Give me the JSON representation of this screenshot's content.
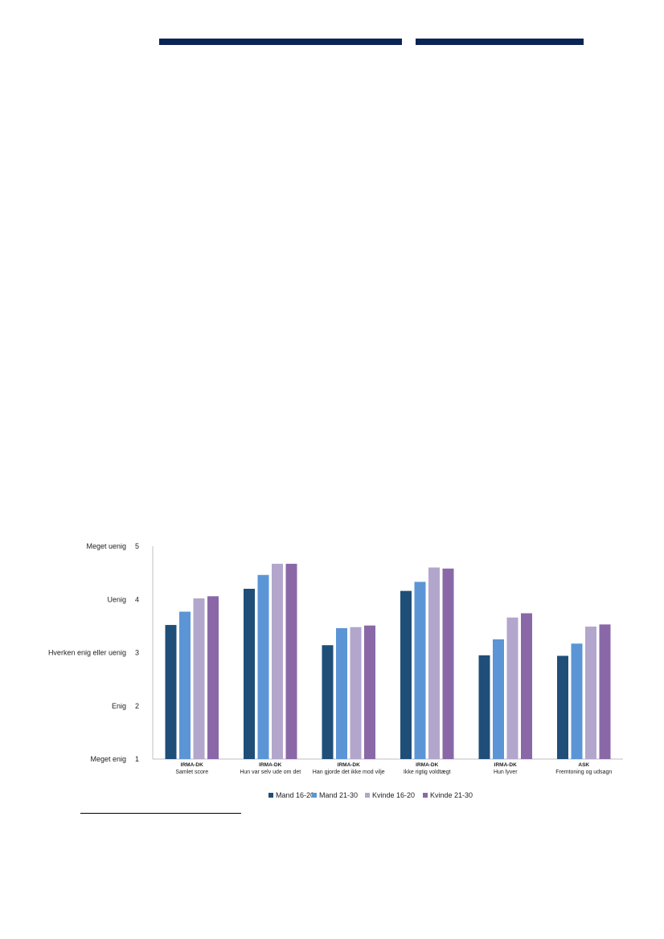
{
  "header": {
    "colors": [
      "#0a2456",
      "#0a2456"
    ]
  },
  "chart_data": {
    "type": "bar",
    "categories": [
      {
        "line1": "IRMA-DK",
        "line2": "Samlet score"
      },
      {
        "line1": "IRMA-DK",
        "line2": "Hun var selv ude om det"
      },
      {
        "line1": "IRMA-DK",
        "line2": "Han gjorde det ikke mod vilje"
      },
      {
        "line1": "IRMA-DK",
        "line2": "Ikke rigtig voldtægt"
      },
      {
        "line1": "IRMA-DK",
        "line2": "Hun lyver"
      },
      {
        "line1": "ASK",
        "line2": "Fremtoning og udsagn"
      }
    ],
    "series": [
      {
        "name": "Mand 16-20",
        "color": "#1f4e79",
        "values": [
          3.52,
          4.2,
          3.14,
          4.16,
          2.95,
          2.94
        ]
      },
      {
        "name": "Mand 21-30",
        "color": "#5b95d6",
        "values": [
          3.77,
          4.46,
          3.46,
          4.33,
          3.25,
          3.17
        ]
      },
      {
        "name": "Kvinde 16-20",
        "color": "#b3a6cc",
        "values": [
          4.02,
          4.67,
          3.48,
          4.6,
          3.66,
          3.49
        ]
      },
      {
        "name": "Kvinde 21-30",
        "color": "#8a68a8",
        "values": [
          4.06,
          4.67,
          3.51,
          4.58,
          3.74,
          3.53
        ]
      }
    ],
    "ylim": [
      1,
      5
    ],
    "yticks": [
      {
        "value": 5,
        "num": "5",
        "label": "Meget uenig"
      },
      {
        "value": 4,
        "num": "4",
        "label": "Uenig"
      },
      {
        "value": 3,
        "num": "3",
        "label": "Hverken enig eller uenig"
      },
      {
        "value": 2,
        "num": "2",
        "label": "Enig"
      },
      {
        "value": 1,
        "num": "1",
        "label": "Meget enig"
      }
    ],
    "legend_position": "bottom",
    "grid": false
  }
}
